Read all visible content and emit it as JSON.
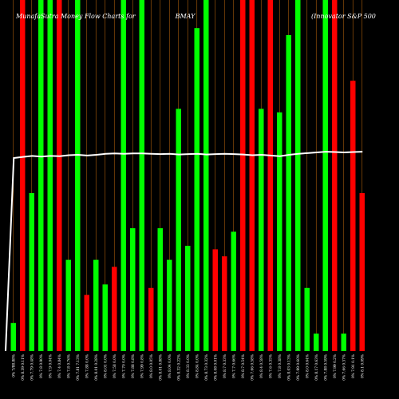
{
  "chart_data": {
    "type": "bar",
    "title_left": "MunafaSutra Money Flow Charts for",
    "title_center": "BMAY",
    "title_right": "(Innovator S&P 500",
    "bar_colors": {
      "up": "#00ff00",
      "down": "#ff0000"
    },
    "line_color": "#ffffff",
    "grid_color": "#b0600a",
    "background": "#000000",
    "ylim": [
      0,
      100
    ],
    "bars": [
      {
        "label": "0% 7/88.88%",
        "value": 8,
        "color": "up"
      },
      {
        "label": "0% 8.39 0.11%",
        "value": 100,
        "color": "down"
      },
      {
        "label": "0% 7.79 0.48%",
        "value": 45,
        "color": "up"
      },
      {
        "label": "0% 7.8 0.90%",
        "value": 100,
        "color": "up"
      },
      {
        "label": "0% 7.9 0.04%",
        "value": 100,
        "color": "up"
      },
      {
        "label": "0% 7.4 0.84%",
        "value": 100,
        "color": "down"
      },
      {
        "label": "0% 7.8 0.76%",
        "value": 26,
        "color": "up"
      },
      {
        "label": "0% 7.81 7.13%",
        "value": 100,
        "color": "up"
      },
      {
        "label": "0% 7.88 0.0%",
        "value": 16,
        "color": "down"
      },
      {
        "label": "0% 8.01 0.28%",
        "value": 26,
        "color": "up"
      },
      {
        "label": "0% 8.01 0.0%",
        "value": 19,
        "color": "up"
      },
      {
        "label": "0% 7.58 0.0%",
        "value": 24,
        "color": "down"
      },
      {
        "label": "0% 7.70 0.0%",
        "value": 100,
        "color": "up"
      },
      {
        "label": "0% 7.88 0.8%",
        "value": 35,
        "color": "up"
      },
      {
        "label": "0% 7.99 0.8%",
        "value": 100,
        "color": "up"
      },
      {
        "label": "0% 8.0 0.05%",
        "value": 18,
        "color": "down"
      },
      {
        "label": "0% 8.01 0.88%",
        "value": 35,
        "color": "up"
      },
      {
        "label": "0% 8.04 0.0%",
        "value": 26,
        "color": "up"
      },
      {
        "label": "0% 8.32 0.22%",
        "value": 69,
        "color": "up"
      },
      {
        "label": "0% 8.33 0.0%",
        "value": 30,
        "color": "up"
      },
      {
        "label": "0% 8.84 0.0%",
        "value": 92,
        "color": "up"
      },
      {
        "label": "0% 8.73 0.32%",
        "value": 100,
        "color": "up"
      },
      {
        "label": "0% 8.08 0.01%",
        "value": 29,
        "color": "down"
      },
      {
        "label": "0% 8.7 0.33%",
        "value": 27,
        "color": "down"
      },
      {
        "label": "0% 7.7 0.66%",
        "value": 34,
        "color": "up"
      },
      {
        "label": "0% 8.7 0.54%",
        "value": 100,
        "color": "down"
      },
      {
        "label": "0% 7.66 0.58%",
        "value": 100,
        "color": "down"
      },
      {
        "label": "0% 8.4 0.58%",
        "value": 69,
        "color": "up"
      },
      {
        "label": "0% 7.6 0.35%",
        "value": 100,
        "color": "down"
      },
      {
        "label": "0% 7.8 0.38%",
        "value": 68,
        "color": "up"
      },
      {
        "label": "0% 8.03 0.13%",
        "value": 90,
        "color": "up"
      },
      {
        "label": "0% 7.99 0.60%",
        "value": 100,
        "color": "up"
      },
      {
        "label": "0% 8.0 0.64%",
        "value": 18,
        "color": "up"
      },
      {
        "label": "0% 8.17 0.63%",
        "value": 5,
        "color": "up"
      },
      {
        "label": "0% 7.88 0.59%",
        "value": 100,
        "color": "up"
      },
      {
        "label": "0% 7.99 0.2%",
        "value": 100,
        "color": "down"
      },
      {
        "label": "0% 7.66 0.37%",
        "value": 5,
        "color": "up"
      },
      {
        "label": "0% 7.91 0.1%",
        "value": 77,
        "color": "down"
      },
      {
        "label": "0% 8.1 0.09%",
        "value": 45,
        "color": "down"
      }
    ],
    "line": [
      0,
      55,
      55.3,
      55.6,
      55.4,
      55.6,
      55.5,
      55.8,
      55.9,
      55.7,
      55.9,
      56.2,
      56.3,
      56.2,
      56.3,
      56.3,
      56.2,
      56.1,
      56.2,
      56.0,
      56.1,
      56.2,
      56.0,
      56.1,
      56.2,
      56.1,
      56.0,
      55.8,
      55.9,
      55.7,
      55.5,
      55.9,
      56.2,
      56.4,
      56.6,
      56.8,
      56.7,
      56.6,
      56.7,
      56.8
    ]
  }
}
